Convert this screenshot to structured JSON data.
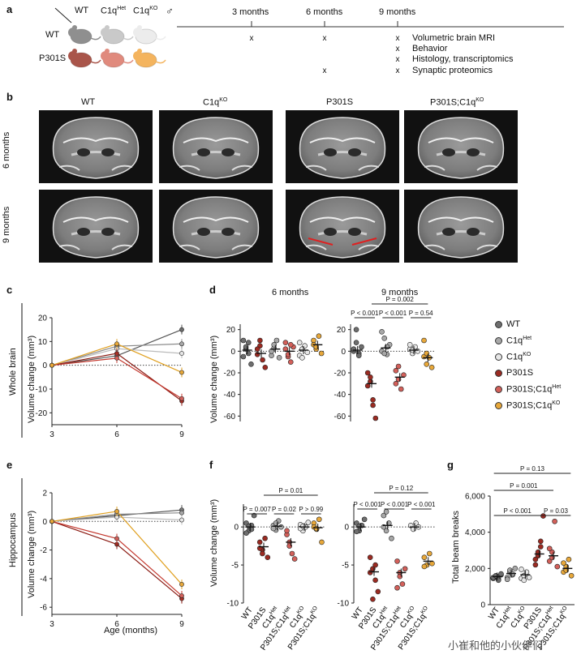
{
  "panels": {
    "a": {
      "label": "a",
      "genotypes": [
        "WT",
        "C1q",
        "C1q"
      ],
      "genotype_sup": [
        "",
        "Het",
        "KO"
      ],
      "male_symbol": "♂",
      "rows": [
        "WT",
        "P301S"
      ],
      "timepoints": [
        "3 months",
        "6 months",
        "9 months"
      ],
      "assays": [
        "Volumetric brain MRI",
        "Behavior",
        "Histology, transcriptomics",
        "Synaptic proteomics"
      ],
      "mark": "x",
      "mouse_colors": {
        "WT": [
          "#8f8f8f",
          "#c9c9c9",
          "#ececec"
        ],
        "P301S": [
          "#a9554a",
          "#e08a7d",
          "#f4b45e"
        ]
      }
    },
    "b": {
      "label": "b",
      "columns": [
        "WT",
        "C1q",
        "P301S",
        "P301S;C1q"
      ],
      "column_sup": [
        "",
        "KO",
        "",
        "KO"
      ],
      "rows": [
        "6 months",
        "9 months"
      ]
    },
    "c": {
      "label": "c",
      "row_title": "Whole brain",
      "ylabel": "Volume change (mm³)"
    },
    "d": {
      "label": "d",
      "titles": [
        "6 months",
        "9 months"
      ],
      "ylabel": "Volume change (mm³)",
      "pvals": [
        "P < 0.001",
        "P < 0.001",
        "P = 0.54",
        "P = 0.002"
      ]
    },
    "e": {
      "label": "e",
      "row_title": "Hippocampus",
      "ylabel": "Volume change (mm³)",
      "xlabel": "Age (months)"
    },
    "f": {
      "label": "f",
      "ylabel": "Volume change (mm³)",
      "pvals_left": [
        "P = 0.007",
        "P = 0.02",
        "P > 0.99",
        "P = 0.01"
      ],
      "pvals_right": [
        "P < 0.001",
        "P < 0.001",
        "P < 0.001",
        "P = 0.12"
      ]
    },
    "g": {
      "label": "g",
      "ylabel": "Total beam breaks",
      "pvals": [
        "P < 0.001",
        "P = 0.03",
        "P = 0.001",
        "P = 0.13"
      ]
    }
  },
  "legend": [
    {
      "name": "WT",
      "sup": "",
      "color": "#6e6e6e"
    },
    {
      "name": "C1q",
      "sup": "Het",
      "color": "#a8a8a8"
    },
    {
      "name": "C1q",
      "sup": "KO",
      "color": "#e6e6e6"
    },
    {
      "name": "P301S",
      "sup": "",
      "color": "#9b2b22"
    },
    {
      "name": "P301S;C1q",
      "sup": "Het",
      "color": "#d3605a"
    },
    {
      "name": "P301S;C1q",
      "sup": "KO",
      "color": "#e8a83a"
    }
  ],
  "x_group_labels": [
    {
      "name": "WT",
      "sup": ""
    },
    {
      "name": "P301S",
      "sup": ""
    },
    {
      "name": "C1q",
      "sup": "Het"
    },
    {
      "name": "P301S;C1q",
      "sup": "Het"
    },
    {
      "name": "C1q",
      "sup": "KO"
    },
    {
      "name": "P301S;C1q",
      "sup": "KO"
    }
  ],
  "watermark": "小崔和他的小伙伴们",
  "chart_data": [
    {
      "id": "c",
      "type": "line",
      "x": [
        3,
        6,
        9
      ],
      "xticks": [
        3,
        6,
        9
      ],
      "ylim": [
        -25,
        20
      ],
      "yticks": [
        -20,
        -10,
        0,
        10,
        20
      ],
      "series": [
        {
          "group": "WT",
          "values": [
            0,
            4,
            15
          ]
        },
        {
          "group": "C1qHet",
          "values": [
            0,
            8,
            9
          ]
        },
        {
          "group": "C1qKO",
          "values": [
            0,
            7,
            5
          ]
        },
        {
          "group": "P301S",
          "values": [
            0,
            5,
            -15
          ]
        },
        {
          "group": "P301S;C1qHet",
          "values": [
            0,
            3,
            -14
          ]
        },
        {
          "group": "P301S;C1qKO",
          "values": [
            0,
            9,
            -3
          ]
        }
      ]
    },
    {
      "id": "d6",
      "type": "scatter",
      "ylim": [
        -65,
        25
      ],
      "yticks": [
        -60,
        -40,
        -20,
        0,
        20
      ],
      "groups": [
        "WT",
        "P301S",
        "C1qHet",
        "P301S;C1qHet",
        "C1qKO",
        "P301S;C1qKO"
      ],
      "points": [
        [
          -5,
          2,
          8,
          -12,
          10,
          4,
          -2
        ],
        [
          -3,
          5,
          -8,
          -15,
          2,
          10
        ],
        [
          -4,
          3,
          10,
          -6,
          0,
          6
        ],
        [
          2,
          -5,
          -10,
          4,
          8,
          -3,
          6
        ],
        [
          -4,
          2,
          5,
          -1,
          8,
          -6
        ],
        [
          10,
          2,
          14,
          -2,
          6,
          4
        ]
      ],
      "means": [
        1,
        -2,
        2,
        0,
        1,
        6
      ]
    },
    {
      "id": "d9",
      "type": "scatter",
      "ylim": [
        -65,
        25
      ],
      "yticks": [
        -60,
        -40,
        -20,
        0,
        20
      ],
      "groups": [
        "WT",
        "P301S",
        "C1qHet",
        "P301S;C1qHet",
        "C1qKO",
        "P301S;C1qKO"
      ],
      "points": [
        [
          0,
          8,
          -2,
          4,
          2,
          20,
          -4
        ],
        [
          -20,
          -28,
          -45,
          -62,
          -32,
          -24,
          -50
        ],
        [
          0,
          12,
          -3,
          6,
          18,
          -2,
          4
        ],
        [
          -18,
          -26,
          -35,
          -22,
          -30,
          -14
        ],
        [
          2,
          -2,
          4,
          0,
          6,
          1
        ],
        [
          -5,
          -12,
          -6,
          -15,
          10,
          -2
        ]
      ],
      "means": [
        1,
        -30,
        3,
        -24,
        1,
        -6
      ]
    },
    {
      "id": "e",
      "type": "line",
      "x": [
        3,
        6,
        9
      ],
      "xticks": [
        3,
        6,
        9
      ],
      "ylim": [
        -6.5,
        2
      ],
      "yticks": [
        -6,
        -4,
        -2,
        0,
        2
      ],
      "series": [
        {
          "group": "WT",
          "values": [
            0,
            0.4,
            0.8
          ]
        },
        {
          "group": "C1qHet",
          "values": [
            0,
            0.5,
            0.6
          ]
        },
        {
          "group": "C1qKO",
          "values": [
            0,
            0.3,
            0.1
          ]
        },
        {
          "group": "P301S",
          "values": [
            0,
            -1.6,
            -5.4
          ]
        },
        {
          "group": "P301S;C1qHet",
          "values": [
            0,
            -1.2,
            -5.2
          ]
        },
        {
          "group": "P301S;C1qKO",
          "values": [
            0,
            0.7,
            -4.4
          ]
        }
      ]
    },
    {
      "id": "f6",
      "type": "scatter",
      "ylim": [
        -10,
        3
      ],
      "yticks": [
        -10,
        -5,
        0
      ],
      "groups": [
        "WT",
        "P301S",
        "C1qHet",
        "P301S;C1qHet",
        "C1qKO",
        "P301S;C1qKO"
      ],
      "points": [
        [
          0.5,
          -0.5,
          0.2,
          1.5,
          -0.8,
          0.1,
          -0.3
        ],
        [
          -2,
          -3,
          -1.5,
          -4,
          -2.8,
          -3.5
        ],
        [
          0.2,
          -0.4,
          0.8,
          0,
          -0.2,
          0.5
        ],
        [
          -1,
          -2,
          -3.5,
          -4.2,
          -0.5,
          -2.5
        ],
        [
          0.3,
          -0.5,
          0,
          0.6,
          -0.2,
          0.1
        ],
        [
          0.5,
          -0.3,
          1,
          -2,
          0,
          -0.2
        ]
      ],
      "means": [
        0,
        -2.6,
        0.1,
        -2,
        0,
        -0.1
      ]
    },
    {
      "id": "f9",
      "type": "scatter",
      "ylim": [
        -10,
        3
      ],
      "yticks": [
        -10,
        -5,
        0
      ],
      "groups": [
        "WT",
        "P301S",
        "C1qHet",
        "P301S;C1qHet",
        "C1qKO",
        "P301S;C1qKO"
      ],
      "points": [
        [
          0.5,
          -0.5,
          0.2,
          1,
          -0.6,
          0.1
        ],
        [
          -4,
          -5.5,
          -7,
          -8.5,
          -6,
          -9.5,
          -5
        ],
        [
          1.5,
          -0.5,
          0.5,
          -1.5,
          0,
          2
        ],
        [
          -4.5,
          -6,
          -7.5,
          -5.5,
          -8,
          -6.5
        ],
        [
          0.2,
          -0.3,
          0.5,
          0
        ],
        [
          -4,
          -5,
          -3.5,
          -4.8,
          -5.2
        ]
      ],
      "means": [
        0,
        -5.9,
        0.2,
        -6,
        0,
        -4.5
      ]
    },
    {
      "id": "g",
      "type": "scatter",
      "ylim": [
        0,
        6000
      ],
      "yticks": [
        0,
        2000,
        4000,
        6000
      ],
      "groups": [
        "WT",
        "C1qHet",
        "C1qKO",
        "P301S",
        "P301S;C1qHet",
        "P301S;C1qKO"
      ],
      "points": [
        [
          1450,
          1550,
          1400,
          1650,
          1500,
          1600,
          1350,
          1700
        ],
        [
          1500,
          1800,
          1650,
          2000,
          1400,
          1900,
          1700
        ],
        [
          1450,
          1600,
          1800,
          1500,
          1950,
          1350
        ],
        [
          2200,
          2700,
          3200,
          4900,
          2500,
          2900,
          3500
        ],
        [
          2400,
          2900,
          4600,
          2100,
          3100,
          2600
        ],
        [
          1800,
          2100,
          2500,
          1600,
          2300,
          1900
        ]
      ],
      "means": [
        1550,
        1720,
        1650,
        2800,
        2700,
        2000
      ]
    }
  ]
}
